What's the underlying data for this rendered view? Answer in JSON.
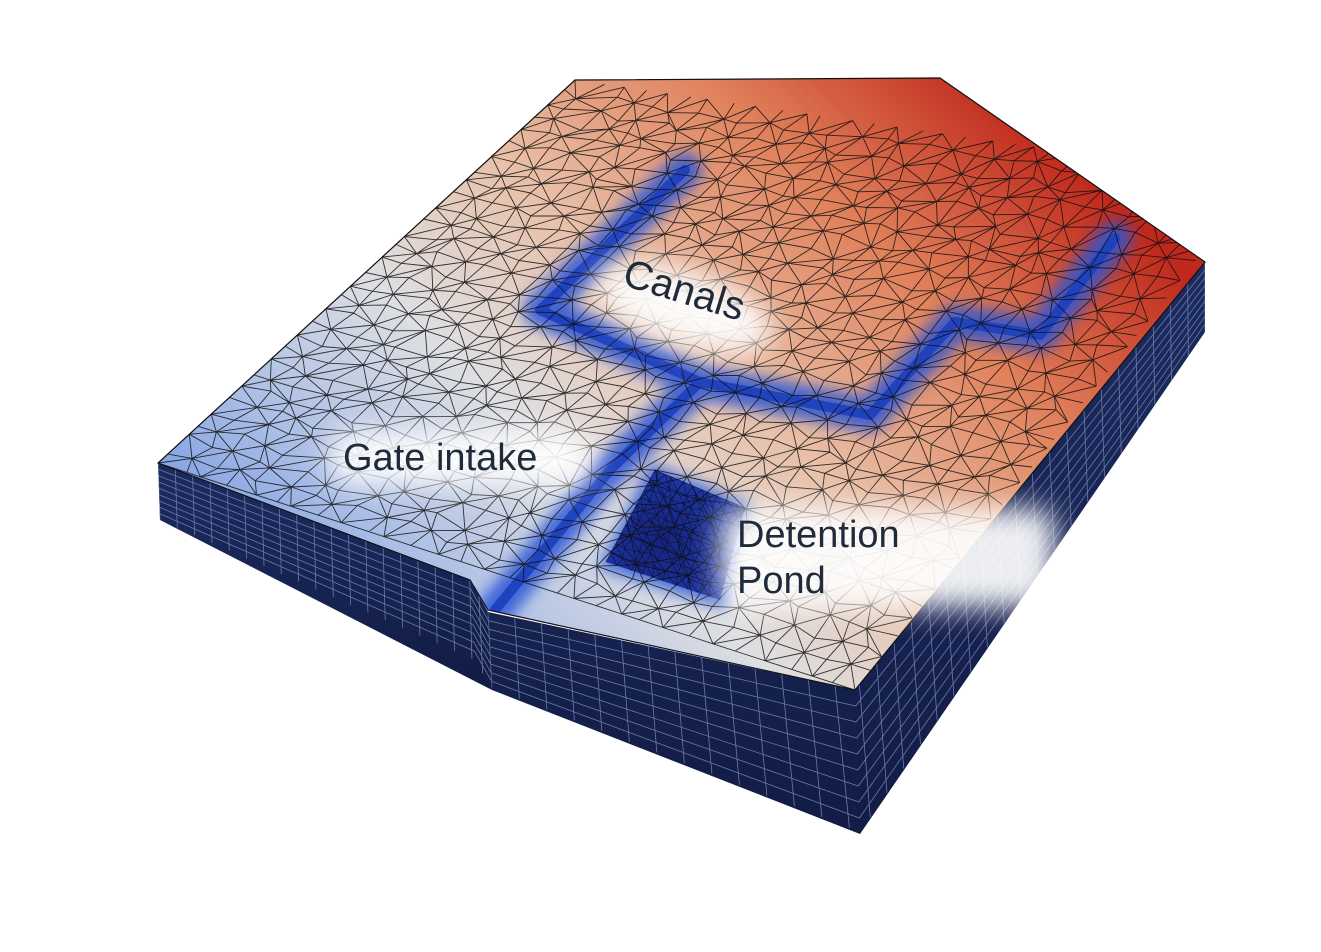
{
  "labels": {
    "canals": "Canals",
    "gate_intake": "Gate intake",
    "detention_line1": "Detention",
    "detention_line2": "Pond"
  },
  "colors": {
    "high_elevation": "#c0281c",
    "mid_elevation": "#e0e0e0",
    "low_elevation": "#2d4fc8",
    "side_wall": "#16234e",
    "mesh_line": "#111111",
    "label_text": "#1f2b3a",
    "label_glow": "#ffffff"
  }
}
